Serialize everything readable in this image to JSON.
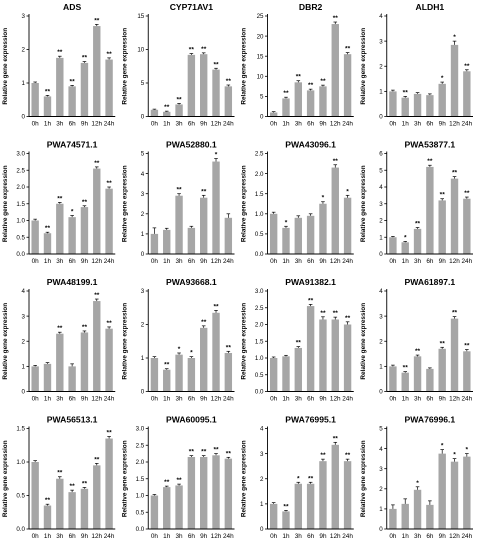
{
  "figure": {
    "ylabel": "Relative gene expression",
    "bar_color": "#a6a6a6",
    "axis_color": "#000000"
  },
  "chart_data": [
    {
      "type": "bar",
      "title": "ADS",
      "ylabel": "Relative gene expression",
      "categories": [
        "0h",
        "1h",
        "3h",
        "6h",
        "9h",
        "12h",
        "24h"
      ],
      "values": [
        1.0,
        0.6,
        1.75,
        0.9,
        1.6,
        2.7,
        1.7
      ],
      "errors": [
        0.03,
        0.03,
        0.05,
        0.03,
        0.04,
        0.05,
        0.05
      ],
      "significance": [
        "",
        "**",
        "**",
        "**",
        "**",
        "**",
        "**"
      ],
      "ylim": [
        0,
        3
      ],
      "yticks": [
        "0",
        "1",
        "2",
        "3"
      ]
    },
    {
      "type": "bar",
      "title": "CYP71AV1",
      "ylabel": "Relative gene expression",
      "categories": [
        "0h",
        "1h",
        "3h",
        "6h",
        "9h",
        "12h",
        "24h"
      ],
      "values": [
        1.0,
        0.7,
        1.8,
        9.2,
        9.3,
        7.0,
        4.5
      ],
      "errors": [
        0.1,
        0.1,
        0.15,
        0.2,
        0.2,
        0.2,
        0.2
      ],
      "significance": [
        "",
        "**",
        "**",
        "**",
        "**",
        "**",
        "**"
      ],
      "ylim": [
        0,
        15
      ],
      "yticks": [
        "0",
        "5",
        "10",
        "15"
      ]
    },
    {
      "type": "bar",
      "title": "DBR2",
      "ylabel": "Relative gene expression",
      "categories": [
        "0h",
        "1h",
        "3h",
        "6h",
        "9h",
        "12h",
        "24h"
      ],
      "values": [
        1.0,
        4.5,
        8.5,
        6.5,
        7.5,
        23.0,
        15.5
      ],
      "errors": [
        0.2,
        0.3,
        0.4,
        0.3,
        0.3,
        0.5,
        0.4
      ],
      "significance": [
        "",
        "**",
        "**",
        "**",
        "**",
        "**",
        "**"
      ],
      "ylim": [
        0,
        25
      ],
      "yticks": [
        "0",
        "5",
        "10",
        "15",
        "20",
        "25"
      ]
    },
    {
      "type": "bar",
      "title": "ALDH1",
      "ylabel": "Relative gene expression",
      "categories": [
        "0h",
        "1h",
        "3h",
        "6h",
        "9h",
        "12h",
        "24h"
      ],
      "values": [
        1.0,
        0.75,
        0.9,
        0.85,
        1.3,
        2.85,
        1.8
      ],
      "errors": [
        0.05,
        0.05,
        0.05,
        0.05,
        0.07,
        0.15,
        0.06
      ],
      "significance": [
        "",
        "**",
        "",
        "",
        "*",
        "*",
        "**"
      ],
      "ylim": [
        0,
        4
      ],
      "yticks": [
        "0",
        "1",
        "2",
        "3",
        "4"
      ]
    },
    {
      "type": "bar",
      "title": "PWA74571.1",
      "ylabel": "Relative gene expression",
      "categories": [
        "0h",
        "1h",
        "3h",
        "6h",
        "9h",
        "12h",
        "24h"
      ],
      "values": [
        1.0,
        0.62,
        1.5,
        1.1,
        1.4,
        2.55,
        1.95
      ],
      "errors": [
        0.04,
        0.03,
        0.04,
        0.05,
        0.04,
        0.05,
        0.05
      ],
      "significance": [
        "",
        "**",
        "**",
        "*",
        "**",
        "**",
        "**"
      ],
      "ylim": [
        0,
        3
      ],
      "yticks": [
        "0.0",
        "0.5",
        "1.0",
        "1.5",
        "2.0",
        "2.5",
        "3.0"
      ]
    },
    {
      "type": "bar",
      "title": "PWA52880.1",
      "ylabel": "Relative gene expression",
      "categories": [
        "0h",
        "1h",
        "3h",
        "6h",
        "9h",
        "12h",
        "24h"
      ],
      "values": [
        1.0,
        1.2,
        2.9,
        1.3,
        2.8,
        4.6,
        1.8
      ],
      "errors": [
        0.3,
        0.08,
        0.1,
        0.08,
        0.12,
        0.15,
        0.2
      ],
      "significance": [
        "",
        "",
        "**",
        "",
        "**",
        "*",
        ""
      ],
      "ylim": [
        0,
        5
      ],
      "yticks": [
        "0",
        "1",
        "2",
        "3",
        "4",
        "5"
      ]
    },
    {
      "type": "bar",
      "title": "PWA43096.1",
      "ylabel": "Relative gene expression",
      "categories": [
        "0h",
        "1h",
        "3h",
        "6h",
        "9h",
        "12h",
        "24h"
      ],
      "values": [
        1.0,
        0.65,
        0.9,
        0.95,
        1.25,
        2.15,
        1.4
      ],
      "errors": [
        0.04,
        0.04,
        0.05,
        0.05,
        0.05,
        0.07,
        0.06
      ],
      "significance": [
        "",
        "*",
        "",
        "",
        "*",
        "**",
        "*"
      ],
      "ylim": [
        0,
        2.5
      ],
      "yticks": [
        "0.0",
        "0.5",
        "1.0",
        "1.5",
        "2.0",
        "2.5"
      ]
    },
    {
      "type": "bar",
      "title": "PWA53877.1",
      "ylabel": "Relative gene expression",
      "categories": [
        "0h",
        "1h",
        "3h",
        "6h",
        "9h",
        "12h",
        "24h"
      ],
      "values": [
        1.0,
        0.7,
        1.5,
        5.2,
        3.2,
        4.5,
        3.3
      ],
      "errors": [
        0.05,
        0.05,
        0.08,
        0.1,
        0.1,
        0.12,
        0.1
      ],
      "significance": [
        "",
        "*",
        "**",
        "**",
        "**",
        "**",
        "**"
      ],
      "ylim": [
        0,
        6
      ],
      "yticks": [
        "0",
        "1",
        "2",
        "3",
        "4",
        "5",
        "6"
      ]
    },
    {
      "type": "bar",
      "title": "PWA48199.1",
      "ylabel": "Relative gene expression",
      "categories": [
        "0h",
        "1h",
        "3h",
        "6h",
        "9h",
        "12h",
        "24h"
      ],
      "values": [
        1.0,
        1.1,
        2.3,
        1.0,
        2.35,
        3.6,
        2.5
      ],
      "errors": [
        0.04,
        0.05,
        0.06,
        0.1,
        0.06,
        0.08,
        0.07
      ],
      "significance": [
        "",
        "",
        "**",
        "",
        "**",
        "**",
        "**"
      ],
      "ylim": [
        0,
        4
      ],
      "yticks": [
        "0",
        "1",
        "2",
        "3",
        "4"
      ]
    },
    {
      "type": "bar",
      "title": "PWA93668.1",
      "ylabel": "Relative gene expression",
      "categories": [
        "0h",
        "1h",
        "3h",
        "6h",
        "9h",
        "12h",
        "24h"
      ],
      "values": [
        1.0,
        0.65,
        1.1,
        1.0,
        1.9,
        2.35,
        1.15
      ],
      "errors": [
        0.04,
        0.03,
        0.05,
        0.04,
        0.06,
        0.07,
        0.05
      ],
      "significance": [
        "",
        "**",
        "*",
        "*",
        "**",
        "**",
        "**"
      ],
      "ylim": [
        0,
        3
      ],
      "yticks": [
        "0",
        "1",
        "2",
        "3"
      ]
    },
    {
      "type": "bar",
      "title": "PWA91382.1",
      "ylabel": "Relative gene expression",
      "categories": [
        "0h",
        "1h",
        "3h",
        "6h",
        "9h",
        "12h",
        "24h"
      ],
      "values": [
        1.0,
        1.05,
        1.3,
        2.55,
        2.15,
        2.15,
        2.0
      ],
      "errors": [
        0.03,
        0.03,
        0.04,
        0.05,
        0.08,
        0.07,
        0.08
      ],
      "significance": [
        "",
        "",
        "**",
        "**",
        "**",
        "**",
        "**"
      ],
      "ylim": [
        0,
        3
      ],
      "yticks": [
        "0.0",
        "0.5",
        "1.0",
        "1.5",
        "2.0",
        "2.5",
        "3.0"
      ]
    },
    {
      "type": "bar",
      "title": "PWA61897.1",
      "ylabel": "Relative gene expression",
      "categories": [
        "0h",
        "1h",
        "3h",
        "6h",
        "9h",
        "12h",
        "24h"
      ],
      "values": [
        1.0,
        0.75,
        1.4,
        0.9,
        1.7,
        2.9,
        1.6
      ],
      "errors": [
        0.05,
        0.04,
        0.05,
        0.04,
        0.06,
        0.08,
        0.07
      ],
      "significance": [
        "",
        "**",
        "**",
        "",
        "**",
        "**",
        "**"
      ],
      "ylim": [
        0,
        4
      ],
      "yticks": [
        "0",
        "1",
        "2",
        "3",
        "4"
      ]
    },
    {
      "type": "bar",
      "title": "PWA56513.1",
      "ylabel": "Relative gene expression",
      "categories": [
        "0h",
        "1h",
        "3h",
        "6h",
        "9h",
        "12h",
        "24h"
      ],
      "values": [
        1.0,
        0.35,
        0.75,
        0.55,
        0.6,
        0.95,
        1.35
      ],
      "errors": [
        0.02,
        0.02,
        0.03,
        0.03,
        0.02,
        0.03,
        0.03
      ],
      "significance": [
        "",
        "**",
        "**",
        "**",
        "**",
        "**",
        "**"
      ],
      "ylim": [
        0,
        1.5
      ],
      "yticks": [
        "0.0",
        "0.5",
        "1.0",
        "1.5"
      ]
    },
    {
      "type": "bar",
      "title": "PWA60095.1",
      "ylabel": "Relative gene expression",
      "categories": [
        "0h",
        "1h",
        "3h",
        "6h",
        "9h",
        "12h",
        "24h"
      ],
      "values": [
        1.0,
        1.25,
        1.3,
        2.15,
        2.15,
        2.2,
        2.1
      ],
      "errors": [
        0.03,
        0.03,
        0.04,
        0.04,
        0.04,
        0.05,
        0.04
      ],
      "significance": [
        "",
        "**",
        "**",
        "**",
        "**",
        "**",
        "**"
      ],
      "ylim": [
        0,
        3
      ],
      "yticks": [
        "0.0",
        "0.5",
        "1.0",
        "1.5",
        "2.0",
        "2.5",
        "3.0"
      ]
    },
    {
      "type": "bar",
      "title": "PWA76995.1",
      "ylabel": "Relative gene expression",
      "categories": [
        "0h",
        "1h",
        "3h",
        "6h",
        "9h",
        "12h",
        "24h"
      ],
      "values": [
        1.0,
        0.7,
        1.8,
        1.8,
        2.7,
        3.35,
        2.7
      ],
      "errors": [
        0.05,
        0.04,
        0.06,
        0.06,
        0.08,
        0.1,
        0.08
      ],
      "significance": [
        "",
        "**",
        "*",
        "**",
        "**",
        "**",
        "**"
      ],
      "ylim": [
        0,
        4
      ],
      "yticks": [
        "0",
        "1",
        "2",
        "3",
        "4"
      ]
    },
    {
      "type": "bar",
      "title": "PWA76996.1",
      "ylabel": "Relative gene expression",
      "categories": [
        "0h",
        "1h",
        "3h",
        "6h",
        "9h",
        "12h",
        "24h"
      ],
      "values": [
        1.0,
        1.25,
        1.95,
        1.2,
        3.75,
        3.35,
        3.6
      ],
      "errors": [
        0.2,
        0.25,
        0.15,
        0.2,
        0.2,
        0.15,
        0.15
      ],
      "significance": [
        "",
        "",
        "*",
        "",
        "*",
        "*",
        "*"
      ],
      "ylim": [
        0,
        5
      ],
      "yticks": [
        "0",
        "1",
        "2",
        "3",
        "4",
        "5"
      ]
    }
  ]
}
